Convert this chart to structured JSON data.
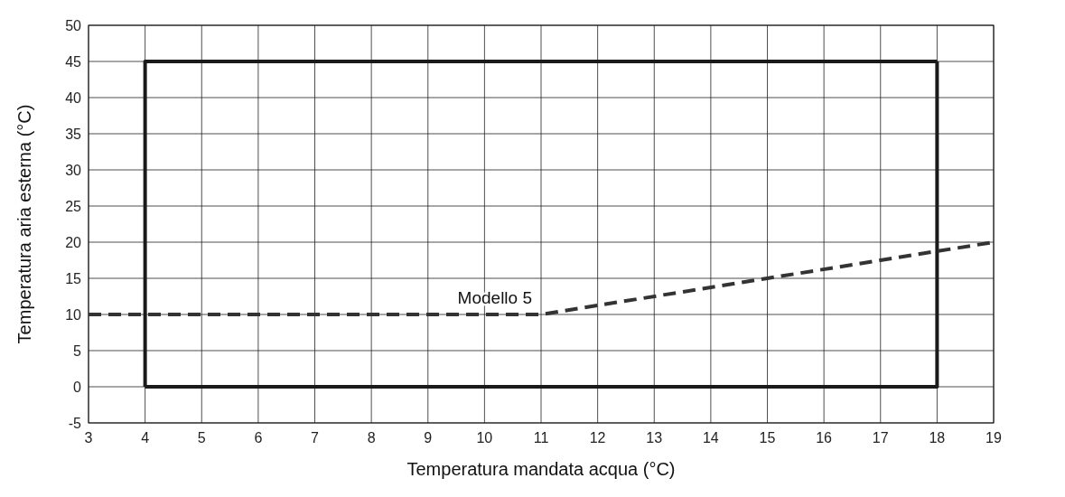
{
  "chart_data": {
    "type": "line",
    "xlabel": "Temperatura mandata acqua (°C)",
    "ylabel": "Temperatura aria esterna (°C)",
    "xlim": [
      3,
      19
    ],
    "xticks": [
      3,
      4,
      5,
      6,
      7,
      8,
      9,
      10,
      11,
      12,
      13,
      14,
      15,
      16,
      17,
      18,
      19
    ],
    "ylim": [
      -5,
      50
    ],
    "yticks": [
      -5,
      0,
      5,
      10,
      15,
      20,
      25,
      30,
      35,
      40,
      45,
      50
    ],
    "grid": true,
    "marker": "none",
    "series": [
      {
        "color": "#1a1a1a",
        "line_style": "solid",
        "x": [
          4,
          4,
          18
        ],
        "values": [
          0,
          45,
          45
        ]
      },
      {
        "color": "#1a1a1a",
        "line_style": "solid",
        "x": [
          4,
          18,
          18
        ],
        "values": [
          0,
          0,
          45
        ]
      },
      {
        "name": "Modello 5",
        "color": "#333333",
        "line_style": "dashed",
        "x": [
          3,
          11,
          15,
          19
        ],
        "values": [
          10,
          10,
          15,
          20
        ]
      }
    ]
  }
}
